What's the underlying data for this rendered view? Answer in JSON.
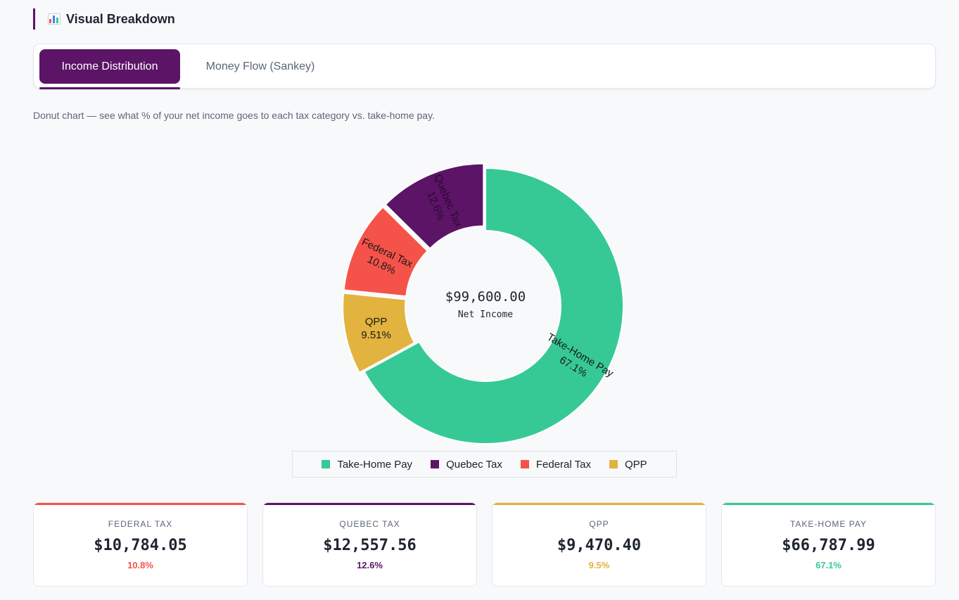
{
  "section": {
    "title": "Visual Breakdown",
    "icon": "bar-chart-icon"
  },
  "tabs": [
    {
      "label": "Income Distribution",
      "active": true
    },
    {
      "label": "Money Flow (Sankey)",
      "active": false
    }
  ],
  "description": "Donut chart — see what % of your net income goes to each tax category vs. take-home pay.",
  "chart_data": {
    "type": "pie",
    "variant": "donut",
    "center_value": "$99,600.00",
    "center_label": "Net Income",
    "slices": [
      {
        "label": "Take-Home Pay",
        "value": 67.1,
        "display": "67.1%",
        "color": "#37c995"
      },
      {
        "label": "QPP",
        "value": 9.51,
        "display": "9.51%",
        "color": "#e2b33e"
      },
      {
        "label": "Federal Tax",
        "value": 10.8,
        "display": "10.8%",
        "color": "#f5534a"
      },
      {
        "label": "Quebec Tax",
        "value": 12.6,
        "display": "12.6%",
        "color": "#5c1467"
      }
    ],
    "legend": [
      "Take-Home Pay",
      "Quebec Tax",
      "Federal Tax",
      "QPP"
    ],
    "legend_position": "bottom"
  },
  "legend": {
    "items": [
      {
        "label": "Take-Home Pay",
        "color": "#37c995"
      },
      {
        "label": "Quebec Tax",
        "color": "#5c1467"
      },
      {
        "label": "Federal Tax",
        "color": "#f5534a"
      },
      {
        "label": "QPP",
        "color": "#e2b33e"
      }
    ]
  },
  "cards": [
    {
      "label": "FEDERAL TAX",
      "value": "$10,784.05",
      "pct": "10.8%",
      "color": "#f5534a"
    },
    {
      "label": "QUEBEC TAX",
      "value": "$12,557.56",
      "pct": "12.6%",
      "color": "#5c1467"
    },
    {
      "label": "QPP",
      "value": "$9,470.40",
      "pct": "9.5%",
      "color": "#e2b33e"
    },
    {
      "label": "TAKE-HOME PAY",
      "value": "$66,787.99",
      "pct": "67.1%",
      "color": "#37c995"
    }
  ]
}
